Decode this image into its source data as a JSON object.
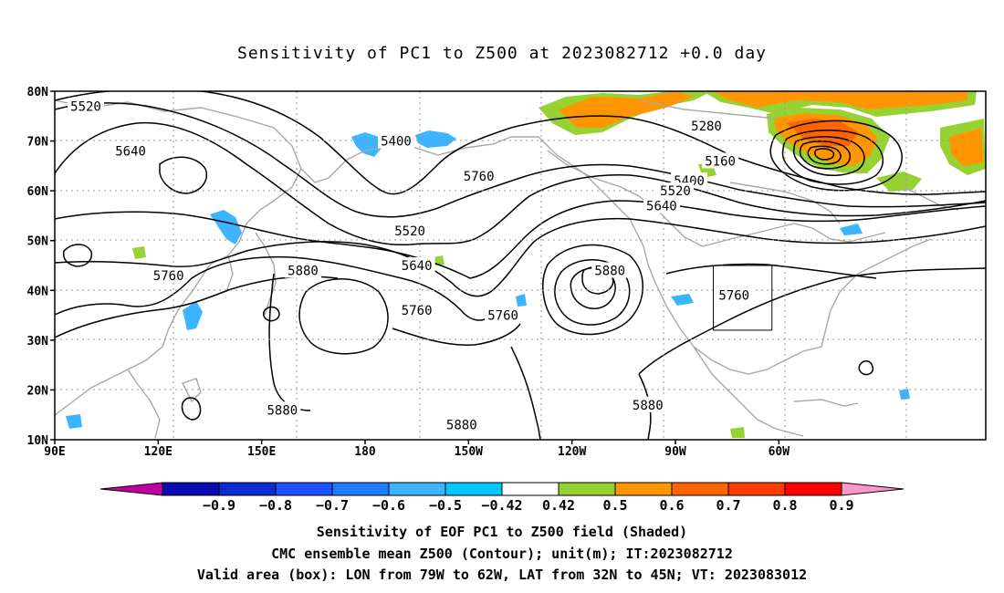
{
  "title": "Sensitivity of PC1 to Z500 at 2023082712 +0.0 day",
  "map": {
    "lat_ticks": [
      "10N",
      "20N",
      "30N",
      "40N",
      "50N",
      "60N",
      "70N",
      "80N"
    ],
    "lon_ticks": [
      "90E",
      "120E",
      "150E",
      "180",
      "150W",
      "120W",
      "90W",
      "60W"
    ],
    "contour_labels": [
      {
        "text": "5520",
        "lon": 99,
        "lat": 77
      },
      {
        "text": "5640",
        "lon": 112,
        "lat": 68
      },
      {
        "text": "5400",
        "lon": -171,
        "lat": 70
      },
      {
        "text": "5760",
        "lon": -147,
        "lat": 63
      },
      {
        "text": "5520",
        "lon": -167,
        "lat": 52
      },
      {
        "text": "5640",
        "lon": -165,
        "lat": 45
      },
      {
        "text": "5760",
        "lon": 123,
        "lat": 43
      },
      {
        "text": "5880",
        "lon": 162,
        "lat": 44
      },
      {
        "text": "5760",
        "lon": -165,
        "lat": 36
      },
      {
        "text": "5760",
        "lon": -140,
        "lat": 35
      },
      {
        "text": "5880",
        "lon": -109,
        "lat": 44
      },
      {
        "text": "5760",
        "lon": -73,
        "lat": 39
      },
      {
        "text": "5280",
        "lon": -81,
        "lat": 73
      },
      {
        "text": "5160",
        "lon": -77,
        "lat": 66
      },
      {
        "text": "5400",
        "lon": -86,
        "lat": 62
      },
      {
        "text": "5520",
        "lon": -90,
        "lat": 60
      },
      {
        "text": "5640",
        "lon": -94,
        "lat": 57
      },
      {
        "text": "5880",
        "lon": 156,
        "lat": 16
      },
      {
        "text": "5880",
        "lon": -152,
        "lat": 13
      },
      {
        "text": "5880",
        "lon": -98,
        "lat": 17
      }
    ],
    "valid_box": {
      "lon_min": -79,
      "lon_max": -62,
      "lat_min": 32,
      "lat_max": 45
    }
  },
  "colorbar": {
    "colors": [
      "#c000a0",
      "#0a0ab4",
      "#0a2ad2",
      "#1e50ff",
      "#1e7dff",
      "#3cb4ff",
      "#00c8ff",
      "#ffffff",
      "#96d232",
      "#ff9600",
      "#ff6400",
      "#ff3c00",
      "#ff0000",
      "#ff96c8"
    ],
    "labels": [
      "-0.9",
      "-0.8",
      "-0.7",
      "-0.6",
      "-0.5",
      "-0.42",
      "0.42",
      "0.5",
      "0.6",
      "0.7",
      "0.8",
      "0.9"
    ]
  },
  "captions": [
    "Sensitivity of EOF PC1 to Z500 field (Shaded)",
    "CMC ensemble mean Z500 (Contour); unit(m); IT:2023082712",
    "Valid area (box): LON from 79W to 62W, LAT from 32N to 45N; VT: 2023083012"
  ]
}
